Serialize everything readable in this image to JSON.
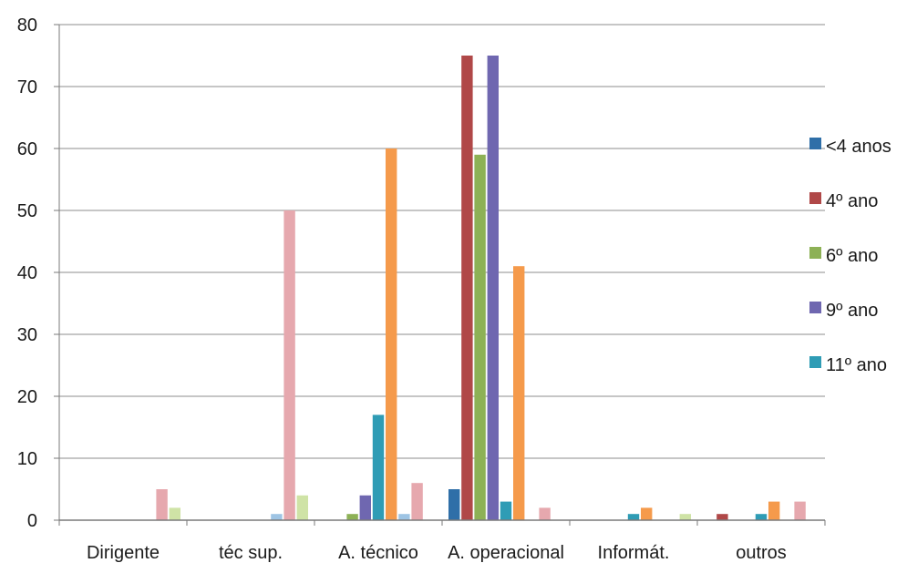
{
  "chart_data": {
    "type": "bar",
    "title": "",
    "xlabel": "",
    "ylabel": "",
    "ylim": [
      0,
      80
    ],
    "yticks": [
      0,
      10,
      20,
      30,
      40,
      50,
      60,
      70,
      80
    ],
    "grid": true,
    "legend_position": "right",
    "categories": [
      "Dirigente",
      "téc sup.",
      "A. técnico",
      "A. operacional",
      "Informát.",
      "outros"
    ],
    "series": [
      {
        "name": "<4 anos",
        "color": "#2f6fa8",
        "legend": true,
        "values": [
          0,
          0,
          0,
          5,
          0,
          0
        ]
      },
      {
        "name": "4º ano",
        "color": "#b04848",
        "legend": true,
        "values": [
          0,
          0,
          0,
          75,
          0,
          1
        ]
      },
      {
        "name": "6º ano",
        "color": "#8db156",
        "legend": true,
        "values": [
          0,
          0,
          1,
          59,
          0,
          0
        ]
      },
      {
        "name": "9º ano",
        "color": "#6f67b0",
        "legend": true,
        "values": [
          0,
          0,
          4,
          75,
          0,
          0
        ]
      },
      {
        "name": "11º ano",
        "color": "#2f9cb5",
        "legend": true,
        "values": [
          0,
          0,
          17,
          3,
          1,
          1
        ]
      },
      {
        "name": "",
        "color": "#f59a4b",
        "legend": false,
        "values": [
          0,
          0,
          60,
          41,
          2,
          3
        ]
      },
      {
        "name": "",
        "color": "#9ec4e4",
        "legend": false,
        "values": [
          0,
          1,
          1,
          0,
          0,
          0
        ]
      },
      {
        "name": "",
        "color": "#e6a8ae",
        "legend": false,
        "values": [
          5,
          50,
          6,
          2,
          0,
          3
        ]
      },
      {
        "name": "",
        "color": "#cfe3a6",
        "legend": false,
        "values": [
          2,
          4,
          0,
          0,
          1,
          0
        ]
      }
    ]
  }
}
